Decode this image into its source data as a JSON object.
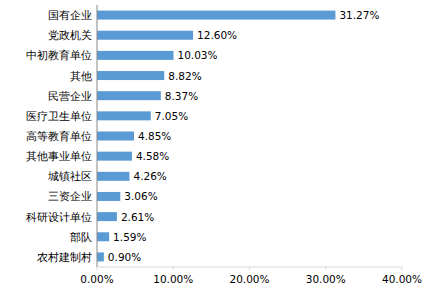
{
  "chart_data": {
    "type": "bar",
    "orientation": "horizontal",
    "categories": [
      "国有企业",
      "党政机关",
      "中初教育单位",
      "其他",
      "民营企业",
      "医疗卫生单位",
      "高等教育单位",
      "其他事业单位",
      "城镇社区",
      "三资企业",
      "科研设计单位",
      "部队",
      "农村建制村"
    ],
    "values": [
      31.27,
      12.6,
      10.03,
      8.82,
      8.37,
      7.05,
      4.85,
      4.58,
      4.26,
      3.06,
      2.61,
      1.59,
      0.9
    ],
    "value_labels": [
      "31.27%",
      "12.60%",
      "10.03%",
      "8.82%",
      "8.37%",
      "7.05%",
      "4.85%",
      "4.58%",
      "4.26%",
      "3.06%",
      "2.61%",
      "1.59%",
      "0.90%"
    ],
    "data_labels": true,
    "color": "#5b9bd5",
    "xlim": [
      0,
      40
    ],
    "xticks": [
      {
        "value": 0,
        "label": "0.00%"
      },
      {
        "value": 10,
        "label": "10.00%"
      },
      {
        "value": 20,
        "label": "20.00%"
      },
      {
        "value": 30,
        "label": "30.00%"
      },
      {
        "value": 40,
        "label": "40.00%"
      }
    ],
    "grid": false
  }
}
